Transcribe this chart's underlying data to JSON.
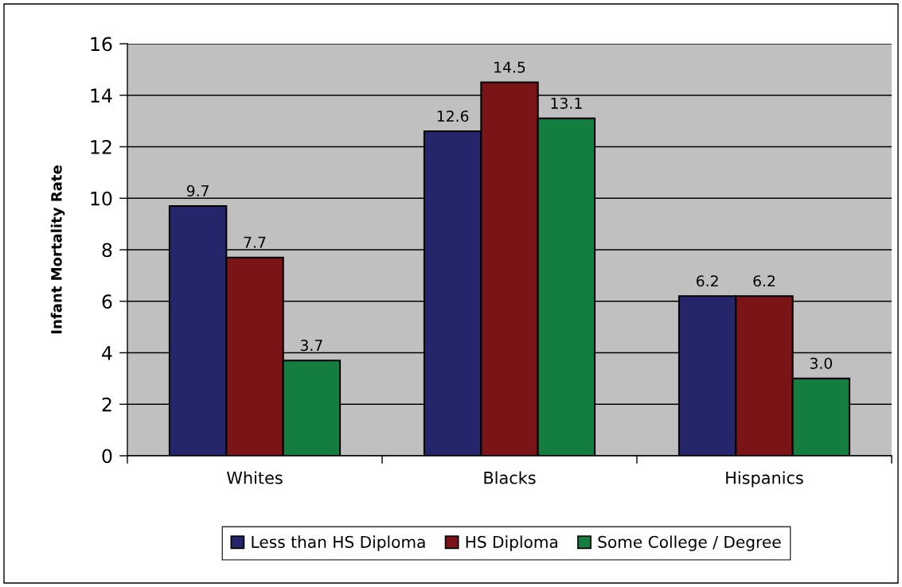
{
  "chart_data": {
    "type": "bar",
    "ylabel": "Infant Mortality Rate",
    "categories": [
      "Whites",
      "Blacks",
      "Hispanics"
    ],
    "series": [
      {
        "name": "Less than HS Diploma",
        "color": "#25256b",
        "values": [
          9.7,
          12.6,
          6.2
        ],
        "value_labels": [
          "9.7",
          "12.6",
          "6.2"
        ]
      },
      {
        "name": "HS Diploma",
        "color": "#7b1416",
        "values": [
          7.7,
          14.5,
          6.2
        ],
        "value_labels": [
          "7.7",
          "14.5",
          "6.2"
        ]
      },
      {
        "name": "Some College / Degree",
        "color": "#137e3f",
        "values": [
          3.7,
          13.1,
          3.0
        ],
        "value_labels": [
          "3.7",
          "13.1",
          "3.0"
        ]
      }
    ],
    "ylim": [
      0,
      16
    ],
    "yticks": [
      0,
      2,
      4,
      6,
      8,
      10,
      12,
      14,
      16
    ],
    "grid": "y",
    "legend": "bottom"
  }
}
